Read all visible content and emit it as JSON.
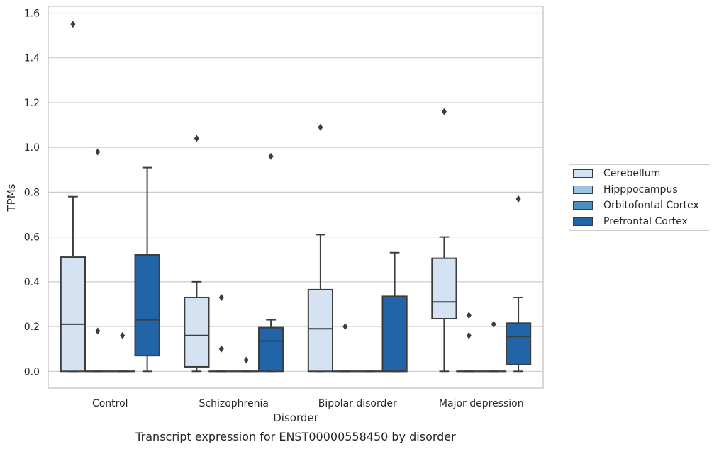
{
  "chart_data": {
    "type": "box",
    "caption": "Transcript expression for ENST00000558450 by disorder",
    "xlabel": "Disorder",
    "ylabel": "TPMs",
    "ylim": [
      -0.075,
      1.63
    ],
    "yticks": [
      "0.0",
      "0.2",
      "0.4",
      "0.6",
      "0.8",
      "1.0",
      "1.2",
      "1.4",
      "1.6"
    ],
    "grid": "horizontal",
    "legend_position": "right",
    "categories": [
      "Control",
      "Schizophrenia",
      "Bipolar disorder",
      "Major depression"
    ],
    "series": [
      {
        "name": "Cerebellum",
        "color": "#d4e2f1",
        "boxes": [
          {
            "whislo": 0.0,
            "q1": 0.0,
            "med": 0.21,
            "q3": 0.51,
            "whishi": 0.78,
            "fliers": [
              1.55
            ]
          },
          {
            "whislo": 0.0,
            "q1": 0.02,
            "med": 0.16,
            "q3": 0.33,
            "whishi": 0.4,
            "fliers": [
              1.04
            ]
          },
          {
            "whislo": 0.0,
            "q1": 0.0,
            "med": 0.19,
            "q3": 0.365,
            "whishi": 0.61,
            "fliers": [
              1.09
            ]
          },
          {
            "whislo": 0.0,
            "q1": 0.235,
            "med": 0.31,
            "q3": 0.505,
            "whishi": 0.6,
            "fliers": [
              1.16
            ]
          }
        ]
      },
      {
        "name": "Hipppocampus",
        "color": "#9dc4e0",
        "boxes": [
          {
            "whislo": 0.0,
            "q1": 0.0,
            "med": 0.0,
            "q3": 0.0,
            "whishi": 0.0,
            "fliers": [
              0.98,
              0.18
            ]
          },
          {
            "whislo": 0.0,
            "q1": 0.0,
            "med": 0.0,
            "q3": 0.0,
            "whishi": 0.0,
            "fliers": [
              0.33,
              0.1
            ]
          },
          {
            "whislo": 0.0,
            "q1": 0.0,
            "med": 0.0,
            "q3": 0.0,
            "whishi": 0.0,
            "fliers": [
              0.2
            ]
          },
          {
            "whislo": 0.0,
            "q1": 0.0,
            "med": 0.0,
            "q3": 0.0,
            "whishi": 0.0,
            "fliers": [
              0.25,
              0.16
            ]
          }
        ]
      },
      {
        "name": "Orbitofontal Cortex",
        "color": "#4a8ec2",
        "boxes": [
          {
            "whislo": 0.0,
            "q1": 0.0,
            "med": 0.0,
            "q3": 0.0,
            "whishi": 0.0,
            "fliers": [
              0.16
            ]
          },
          {
            "whislo": 0.0,
            "q1": 0.0,
            "med": 0.0,
            "q3": 0.0,
            "whishi": 0.0,
            "fliers": [
              0.05
            ]
          },
          {
            "whislo": 0.0,
            "q1": 0.0,
            "med": 0.0,
            "q3": 0.0,
            "whishi": 0.0,
            "fliers": []
          },
          {
            "whislo": 0.0,
            "q1": 0.0,
            "med": 0.0,
            "q3": 0.0,
            "whishi": 0.0,
            "fliers": [
              0.21
            ]
          }
        ]
      },
      {
        "name": "Prefrontal Cortex",
        "color": "#2264a8",
        "boxes": [
          {
            "whislo": 0.0,
            "q1": 0.07,
            "med": 0.23,
            "q3": 0.52,
            "whishi": 0.91,
            "fliers": []
          },
          {
            "whislo": 0.0,
            "q1": 0.0,
            "med": 0.135,
            "q3": 0.195,
            "whishi": 0.23,
            "fliers": [
              0.96
            ]
          },
          {
            "whislo": 0.0,
            "q1": 0.0,
            "med": 0.0,
            "q3": 0.335,
            "whishi": 0.53,
            "fliers": []
          },
          {
            "whislo": 0.0,
            "q1": 0.03,
            "med": 0.155,
            "q3": 0.215,
            "whishi": 0.33,
            "fliers": [
              0.77
            ]
          }
        ]
      }
    ]
  }
}
